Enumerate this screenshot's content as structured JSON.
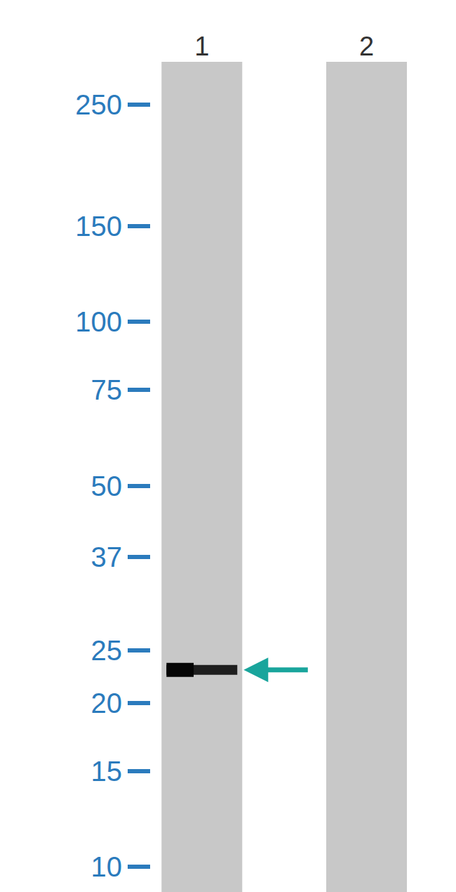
{
  "chart_data": {
    "type": "western_blot",
    "categories": [
      "1",
      "2"
    ],
    "log": "y",
    "ylim": [
      9,
      300
    ],
    "yticks": [
      250,
      150,
      100,
      75,
      50,
      37,
      25,
      20,
      15,
      10
    ],
    "bands": [
      {
        "lane": "1",
        "value": 23
      }
    ],
    "arrow": {
      "lane": "1",
      "value": 23
    }
  }
}
